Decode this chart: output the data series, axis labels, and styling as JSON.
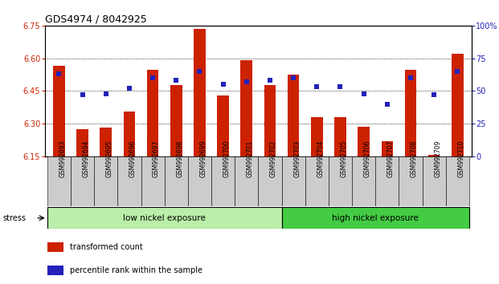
{
  "title": "GDS4974 / 8042925",
  "samples": [
    "GSM992693",
    "GSM992694",
    "GSM992695",
    "GSM992696",
    "GSM992697",
    "GSM992698",
    "GSM992699",
    "GSM992700",
    "GSM992701",
    "GSM992702",
    "GSM992703",
    "GSM992704",
    "GSM992705",
    "GSM992706",
    "GSM992707",
    "GSM992708",
    "GSM992709",
    "GSM992710"
  ],
  "transformed_count": [
    6.565,
    6.275,
    6.28,
    6.355,
    6.545,
    6.475,
    6.735,
    6.43,
    6.59,
    6.475,
    6.525,
    6.33,
    6.33,
    6.285,
    6.22,
    6.545,
    6.155,
    6.62
  ],
  "percentile_rank": [
    63,
    47,
    48,
    52,
    60,
    58,
    65,
    55,
    57,
    58,
    60,
    53,
    53,
    48,
    40,
    60,
    47,
    65
  ],
  "ymin": 6.15,
  "ymax": 6.75,
  "y_ticks": [
    6.15,
    6.3,
    6.45,
    6.6,
    6.75
  ],
  "y2_ticks": [
    0,
    25,
    50,
    75,
    100
  ],
  "bar_color": "#CC2200",
  "marker_color": "#2222BB",
  "low_nickel_count": 10,
  "low_nickel_label": "low nickel exposure",
  "high_nickel_label": "high nickel exposure",
  "low_nickel_color": "#BBEEAA",
  "high_nickel_color": "#44CC44",
  "xtick_bg": "#CCCCCC",
  "stress_label": "stress",
  "legend1": "transformed count",
  "legend2": "percentile rank within the sample"
}
